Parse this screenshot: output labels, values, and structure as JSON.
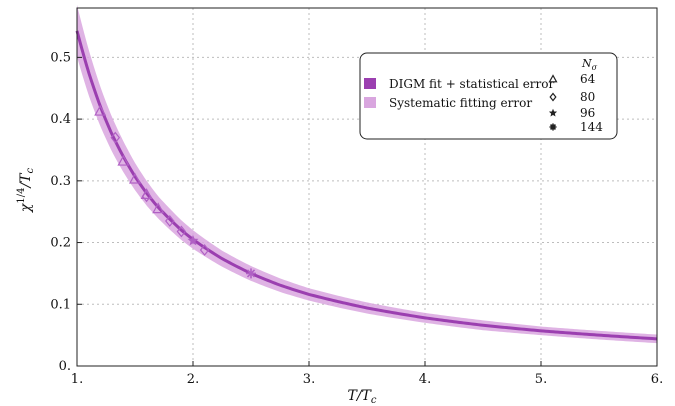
{
  "chart_data": {
    "type": "line",
    "xlabel": "T/T",
    "xlabel_sub": "c",
    "ylabel": "χ",
    "ylabel_sup": "1/4",
    "ylabel_tail": "/T",
    "ylabel_sub": "c",
    "xlim": [
      1.0,
      6.0
    ],
    "ylim": [
      0.0,
      0.58
    ],
    "grid": true,
    "x_ticks": [
      1,
      2,
      3,
      4,
      5,
      6
    ],
    "x_tick_labels": [
      "1.",
      "2.",
      "3.",
      "4.",
      "5.",
      "6."
    ],
    "y_ticks": [
      0,
      0.1,
      0.2,
      0.3,
      0.4,
      0.5
    ],
    "y_tick_labels": [
      "0.",
      "0.1",
      "0.2",
      "0.3",
      "0.4",
      "0.5"
    ],
    "fit": {
      "x": [
        1.0,
        1.1,
        1.2,
        1.3,
        1.4,
        1.5,
        1.6,
        1.7,
        1.8,
        1.9,
        2.0,
        2.25,
        2.5,
        2.75,
        3.0,
        3.5,
        4.0,
        4.5,
        5.0,
        5.5,
        6.0
      ],
      "y": [
        0.543,
        0.476,
        0.421,
        0.376,
        0.339,
        0.307,
        0.28,
        0.257,
        0.238,
        0.22,
        0.205,
        0.174,
        0.15,
        0.131,
        0.116,
        0.094,
        0.078,
        0.066,
        0.057,
        0.05,
        0.044
      ],
      "sys_half_width": [
        0.042,
        0.037,
        0.032,
        0.028,
        0.025,
        0.022,
        0.02,
        0.018,
        0.017,
        0.016,
        0.015,
        0.013,
        0.012,
        0.011,
        0.01,
        0.009,
        0.008,
        0.008,
        0.007,
        0.007,
        0.007
      ]
    },
    "series": [
      {
        "name": "64",
        "symbol": "triangle",
        "x": [
          1.2,
          1.4,
          1.5,
          1.6,
          1.7
        ],
        "y": [
          0.413,
          0.332,
          0.303,
          0.278,
          0.255
        ]
      },
      {
        "name": "80",
        "symbol": "diamond",
        "x": [
          1.33,
          1.6,
          1.8,
          1.9,
          2.1
        ],
        "y": [
          0.37,
          0.275,
          0.235,
          0.218,
          0.188
        ]
      },
      {
        "name": "96",
        "symbol": "star",
        "x": [
          2.0
        ],
        "y": [
          0.203
        ]
      },
      {
        "name": "144",
        "symbol": "asterisk",
        "x": [
          2.5
        ],
        "y": [
          0.15
        ]
      }
    ],
    "legend": {
      "placement": "top-right",
      "fit_label": "DIGM fit + statistical error",
      "sys_label": "Systematic fitting error",
      "header": "N",
      "header_sub": "σ"
    },
    "colors": {
      "fit": "#9b3fb0",
      "band": "#d9a6df",
      "marker": "#b060c4",
      "grid": "#bdbdbd"
    }
  }
}
